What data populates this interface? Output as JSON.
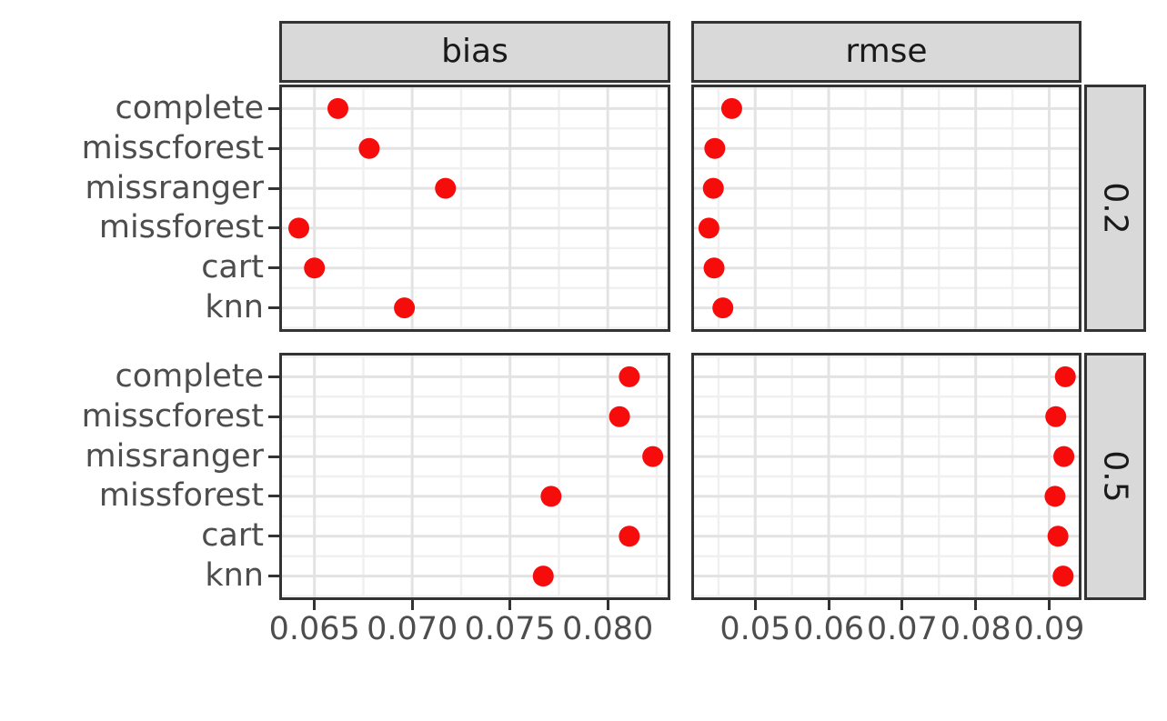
{
  "figure": {
    "background": "#ffffff",
    "kind": "faceted dot plot"
  },
  "chart_data": {
    "type": "scatter",
    "title": "",
    "facet_columns": [
      "bias",
      "rmse"
    ],
    "facet_rows": [
      "0.2",
      "0.5"
    ],
    "categories": [
      "complete",
      "misscforest",
      "missranger",
      "missforest",
      "cart",
      "knn"
    ],
    "x_axes": [
      {
        "name": "bias",
        "ticks": [
          0.065,
          0.07,
          0.075,
          0.08
        ],
        "tick_labels": [
          "0.065",
          "0.070",
          "0.075",
          "0.080"
        ],
        "minor_ticks": [
          0.0675,
          0.0725,
          0.0775,
          0.0825
        ],
        "domain": [
          0.0632,
          0.0832
        ]
      },
      {
        "name": "rmse",
        "ticks": [
          0.05,
          0.06,
          0.07,
          0.08,
          0.09
        ],
        "tick_labels": [
          "0.05",
          "0.06",
          "0.07",
          "0.08",
          "0.09"
        ],
        "minor_ticks": [
          0.045,
          0.055,
          0.065,
          0.075,
          0.085
        ],
        "domain": [
          0.0413,
          0.0944
        ]
      }
    ],
    "series": [
      {
        "facet_col": "bias",
        "facet_row": "0.2",
        "values": [
          0.0662,
          0.0678,
          0.0717,
          0.0642,
          0.065,
          0.0696
        ]
      },
      {
        "facet_col": "bias",
        "facet_row": "0.5",
        "values": [
          0.0811,
          0.0806,
          0.0823,
          0.0771,
          0.0811,
          0.0767
        ]
      },
      {
        "facet_col": "rmse",
        "facet_row": "0.2",
        "values": [
          0.0468,
          0.0445,
          0.0443,
          0.0437,
          0.0444,
          0.0456
        ]
      },
      {
        "facet_col": "rmse",
        "facet_row": "0.5",
        "values": [
          0.0922,
          0.0909,
          0.092,
          0.0908,
          0.0912,
          0.0919
        ]
      }
    ],
    "style": {
      "point_color": "#f70c0c",
      "point_radius_px": 11.5,
      "grid_major_color": "#e3e3e3",
      "grid_minor_color": "#f0f0f0",
      "panel_border_color": "#333333",
      "strip_background": "#d9d9d9",
      "strip_text_color": "#1a1a1a",
      "axis_text_color": "#4d4d4d",
      "tick_color": "#333333"
    },
    "legend": "none",
    "grid": true
  }
}
